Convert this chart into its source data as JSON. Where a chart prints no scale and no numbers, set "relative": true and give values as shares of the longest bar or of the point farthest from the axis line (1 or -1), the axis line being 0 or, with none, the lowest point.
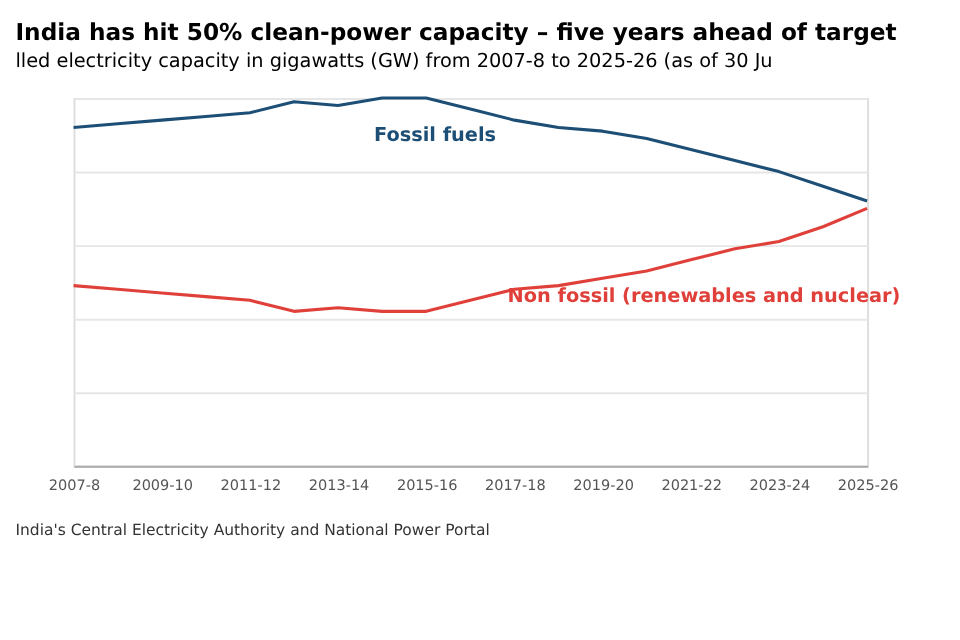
{
  "chart_data": {
    "type": "line",
    "title": "India has hit 50% clean-power capacity – five years ahead of target",
    "subtitle": "lled electricity capacity in gigawatts (GW) from 2007-8 to 2025-26 (as of 30 Ju",
    "categories": [
      "2007-8",
      null,
      "2009-10",
      null,
      "2011-12",
      null,
      "2013-14",
      null,
      "2015-16",
      null,
      "2017-18",
      null,
      "2019-20",
      null,
      "2021-22",
      null,
      "2023-24",
      null,
      "2025-26"
    ],
    "relative": true,
    "grid": "y",
    "legend": false,
    "marker": "none",
    "line_style": "solid",
    "series": [
      {
        "name": "Fossil fuels",
        "color": "#1d4f76",
        "values": [
          0.92,
          0.93,
          0.94,
          0.95,
          0.96,
          0.99,
          0.98,
          1.0,
          1.0,
          0.97,
          0.94,
          0.92,
          0.91,
          0.89,
          0.86,
          0.83,
          0.8,
          0.76,
          0.72
        ]
      },
      {
        "name": "Non fossil (renewables and nuclear)",
        "color": "#e0403a",
        "values": [
          0.49,
          0.48,
          0.47,
          0.46,
          0.45,
          0.42,
          0.43,
          0.42,
          0.42,
          0.45,
          0.48,
          0.49,
          0.51,
          0.53,
          0.56,
          0.59,
          0.61,
          0.65,
          0.7
        ]
      }
    ],
    "annotations": [
      "India's Central Electricity Authority and National Power Portal"
    ]
  }
}
